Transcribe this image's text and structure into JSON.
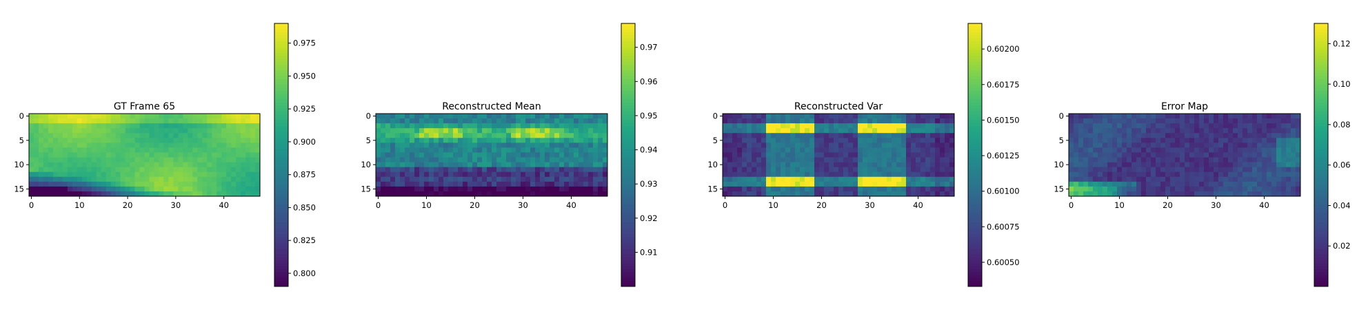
{
  "figure": {
    "colormap": "viridis",
    "grid": false
  },
  "chart_data": [
    {
      "type": "heatmap",
      "title": "GT Frame 65",
      "xlabel": "",
      "ylabel": "",
      "rows": 17,
      "cols": 48,
      "xticks": [
        0,
        10,
        20,
        30,
        40
      ],
      "yticks": [
        0,
        5,
        10,
        15
      ],
      "colorbar": {
        "min": 0.79,
        "max": 0.99,
        "ticks": [
          "0.800",
          "0.825",
          "0.850",
          "0.875",
          "0.900",
          "0.925",
          "0.950",
          "0.975"
        ]
      },
      "pattern": "gt",
      "seed": 65
    },
    {
      "type": "heatmap",
      "title": "Reconstructed Mean",
      "xlabel": "",
      "ylabel": "",
      "rows": 17,
      "cols": 48,
      "xticks": [
        0,
        10,
        20,
        30,
        40
      ],
      "yticks": [
        0,
        5,
        10,
        15
      ],
      "colorbar": {
        "min": 0.9,
        "max": 0.977,
        "ticks": [
          "0.91",
          "0.92",
          "0.93",
          "0.94",
          "0.95",
          "0.96",
          "0.97"
        ]
      },
      "pattern": "mean",
      "seed": 11
    },
    {
      "type": "heatmap",
      "title": "Reconstructed Var",
      "xlabel": "",
      "ylabel": "",
      "rows": 17,
      "cols": 48,
      "xticks": [
        0,
        10,
        20,
        30,
        40
      ],
      "yticks": [
        0,
        5,
        10,
        15
      ],
      "colorbar": {
        "min": 0.60033,
        "max": 0.60218,
        "ticks": [
          "0.60050",
          "0.60075",
          "0.60100",
          "0.60125",
          "0.60150",
          "0.60175",
          "0.60200"
        ]
      },
      "pattern": "var",
      "seed": 23
    },
    {
      "type": "heatmap",
      "title": "Error Map",
      "xlabel": "",
      "ylabel": "",
      "rows": 17,
      "cols": 48,
      "xticks": [
        0,
        10,
        20,
        30,
        40
      ],
      "yticks": [
        0,
        5,
        10,
        15
      ],
      "colorbar": {
        "min": 0.0,
        "max": 0.13,
        "ticks": [
          "0.02",
          "0.04",
          "0.06",
          "0.08",
          "0.10",
          "0.12"
        ]
      },
      "pattern": "error",
      "seed": 37
    }
  ]
}
